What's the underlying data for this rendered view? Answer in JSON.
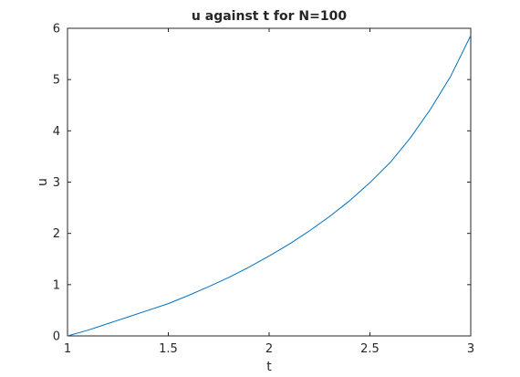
{
  "chart_data": {
    "type": "line",
    "title": "u against t for N=100",
    "xlabel": "t",
    "ylabel": "u",
    "xlim": [
      1,
      3
    ],
    "ylim": [
      0,
      6
    ],
    "xticks": [
      1,
      1.5,
      2,
      2.5,
      3
    ],
    "xtick_labels": [
      "1",
      "1.5",
      "2",
      "2.5",
      "3"
    ],
    "yticks": [
      0,
      1,
      2,
      3,
      4,
      5,
      6
    ],
    "ytick_labels": [
      "0",
      "1",
      "2",
      "3",
      "4",
      "5",
      "6"
    ],
    "grid": false,
    "series": [
      {
        "color": "#0072bd",
        "x": [
          1.0,
          1.1,
          1.2,
          1.3,
          1.4,
          1.5,
          1.6,
          1.7,
          1.8,
          1.9,
          2.0,
          2.1,
          2.2,
          2.3,
          2.4,
          2.5,
          2.6,
          2.7,
          2.8,
          2.9,
          3.0
        ],
        "y": [
          0.0,
          0.11,
          0.24,
          0.37,
          0.5,
          0.63,
          0.79,
          0.96,
          1.14,
          1.34,
          1.56,
          1.79,
          2.05,
          2.33,
          2.64,
          2.99,
          3.38,
          3.86,
          4.42,
          5.06,
          5.86
        ]
      }
    ]
  }
}
